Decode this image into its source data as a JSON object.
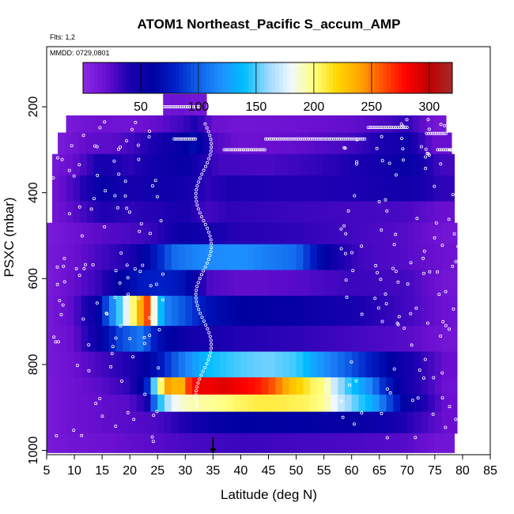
{
  "chart_data": {
    "type": "heatmap",
    "title": "ATOM1 Northeast_Pacific S_accum_AMP",
    "flights_label": "Flts: 1,2",
    "date_label": "MMDD: 0729,0801",
    "xlabel": "Latitude (deg N)",
    "ylabel": "PSXC (mbar)",
    "xlim": [
      5,
      85
    ],
    "ylim": [
      1010,
      60
    ],
    "y_inverted": true,
    "x_ticks": [
      "5",
      "10",
      "15",
      "20",
      "25",
      "30",
      "35",
      "40",
      "45",
      "50",
      "55",
      "60",
      "65",
      "70",
      "75",
      "80",
      "85"
    ],
    "y_ticks": [
      "200",
      "400",
      "600",
      "800",
      "1000"
    ],
    "colorbar": {
      "range": [
        0,
        320
      ],
      "ticks": [
        "50",
        "100",
        "150",
        "200",
        "250",
        "300"
      ],
      "colors": [
        "#8a2be2",
        "#6a0fd0",
        "#1a00b0",
        "#0000a0",
        "#0020c8",
        "#1060e8",
        "#1e90ff",
        "#00bfff",
        "#9ad8ff",
        "#f0f8ff",
        "#ffff80",
        "#ffd700",
        "#ffa500",
        "#ff5000",
        "#ff0000",
        "#c00000",
        "#a52a2a"
      ]
    },
    "rows": [
      {
        "p0": 170,
        "p1": 220,
        "lat0": 26.0,
        "lat1": 33.8,
        "cells": [
          [
            26,
            15
          ],
          [
            29,
            18
          ],
          [
            32,
            14
          ]
        ]
      },
      {
        "p0": 220,
        "p1": 260,
        "lat0": 8.5,
        "lat1": 77.0,
        "cells": [
          [
            9,
            12
          ],
          [
            14,
            18
          ],
          [
            20,
            16
          ],
          [
            25,
            22
          ],
          [
            29,
            30
          ],
          [
            32,
            40
          ],
          [
            35,
            20
          ],
          [
            40,
            15
          ],
          [
            50,
            18
          ],
          [
            60,
            22
          ],
          [
            66,
            28
          ],
          [
            70,
            35
          ],
          [
            75,
            14
          ]
        ]
      },
      {
        "p0": 260,
        "p1": 310,
        "lat0": 7.0,
        "lat1": 78.0,
        "cells": [
          [
            7,
            10
          ],
          [
            12,
            22
          ],
          [
            18,
            25
          ],
          [
            24,
            40
          ],
          [
            29,
            55
          ],
          [
            32,
            70
          ],
          [
            35,
            28
          ],
          [
            40,
            18
          ],
          [
            50,
            22
          ],
          [
            60,
            30
          ],
          [
            65,
            40
          ],
          [
            70,
            48
          ],
          [
            75,
            20
          ]
        ]
      },
      {
        "p0": 310,
        "p1": 360,
        "lat0": 6.0,
        "lat1": 78.5,
        "cells": [
          [
            6,
            12
          ],
          [
            11,
            25
          ],
          [
            15,
            45
          ],
          [
            20,
            35
          ],
          [
            25,
            48
          ],
          [
            30,
            55
          ],
          [
            33,
            40
          ],
          [
            36,
            30
          ],
          [
            45,
            28
          ],
          [
            55,
            35
          ],
          [
            65,
            45
          ],
          [
            70,
            55
          ],
          [
            76,
            30
          ]
        ]
      },
      {
        "p0": 360,
        "p1": 420,
        "lat0": 6.0,
        "lat1": 78.5,
        "cells": [
          [
            6,
            15
          ],
          [
            10,
            30
          ],
          [
            15,
            55
          ],
          [
            20,
            42
          ],
          [
            25,
            50
          ],
          [
            30,
            45
          ],
          [
            34,
            35
          ],
          [
            38,
            40
          ],
          [
            50,
            38
          ],
          [
            60,
            40
          ],
          [
            70,
            48
          ],
          [
            76,
            35
          ]
        ]
      },
      {
        "p0": 420,
        "p1": 470,
        "lat0": 6.0,
        "lat1": 78.5,
        "cells": [
          [
            6,
            15
          ],
          [
            10,
            25
          ],
          [
            15,
            40
          ],
          [
            20,
            35
          ],
          [
            25,
            38
          ],
          [
            30,
            42
          ],
          [
            34,
            30
          ],
          [
            38,
            35
          ],
          [
            50,
            32
          ],
          [
            60,
            30
          ],
          [
            70,
            28
          ],
          [
            76,
            20
          ]
        ]
      },
      {
        "p0": 470,
        "p1": 520,
        "lat0": 5.0,
        "lat1": 79.0,
        "cells": [
          [
            5,
            10
          ],
          [
            10,
            18
          ],
          [
            15,
            25
          ],
          [
            20,
            28
          ],
          [
            25,
            35
          ],
          [
            30,
            55
          ],
          [
            34,
            45
          ],
          [
            38,
            38
          ],
          [
            50,
            35
          ],
          [
            60,
            30
          ],
          [
            70,
            25
          ],
          [
            77,
            15
          ]
        ]
      },
      {
        "p0": 520,
        "p1": 580,
        "lat0": 5.0,
        "lat1": 79.0,
        "cells": [
          [
            5,
            12
          ],
          [
            10,
            20
          ],
          [
            15,
            30
          ],
          [
            20,
            40
          ],
          [
            24,
            70
          ],
          [
            28,
            105
          ],
          [
            32,
            115
          ],
          [
            35,
            118
          ],
          [
            40,
            120
          ],
          [
            45,
            112
          ],
          [
            50,
            105
          ],
          [
            55,
            60
          ],
          [
            58,
            40
          ],
          [
            62,
            30
          ],
          [
            70,
            25
          ],
          [
            77,
            18
          ]
        ]
      },
      {
        "p0": 580,
        "p1": 640,
        "lat0": 5.0,
        "lat1": 79.0,
        "cells": [
          [
            5,
            10
          ],
          [
            10,
            22
          ],
          [
            15,
            35
          ],
          [
            18,
            58
          ],
          [
            22,
            75
          ],
          [
            26,
            80
          ],
          [
            30,
            70
          ],
          [
            34,
            28
          ],
          [
            40,
            22
          ],
          [
            50,
            25
          ],
          [
            60,
            32
          ],
          [
            70,
            30
          ],
          [
            77,
            15
          ]
        ]
      },
      {
        "p0": 640,
        "p1": 710,
        "lat0": 5.0,
        "lat1": 79.0,
        "cells": [
          [
            5,
            12
          ],
          [
            10,
            25
          ],
          [
            14,
            55
          ],
          [
            17,
            120
          ],
          [
            19,
            170
          ],
          [
            21,
            210
          ],
          [
            22,
            240
          ],
          [
            23,
            270
          ],
          [
            24,
            205
          ],
          [
            25,
            150
          ],
          [
            27,
            110
          ],
          [
            30,
            95
          ],
          [
            34,
            70
          ],
          [
            40,
            60
          ],
          [
            50,
            55
          ],
          [
            60,
            42
          ],
          [
            70,
            30
          ],
          [
            77,
            18
          ]
        ]
      },
      {
        "p0": 710,
        "p1": 770,
        "lat0": 5.0,
        "lat1": 79.0,
        "cells": [
          [
            5,
            12
          ],
          [
            10,
            22
          ],
          [
            14,
            50
          ],
          [
            18,
            90
          ],
          [
            22,
            110
          ],
          [
            25,
            70
          ],
          [
            30,
            50
          ],
          [
            34,
            42
          ],
          [
            40,
            38
          ],
          [
            50,
            35
          ],
          [
            60,
            30
          ],
          [
            70,
            25
          ],
          [
            77,
            15
          ]
        ]
      },
      {
        "p0": 770,
        "p1": 830,
        "lat0": 5.0,
        "lat1": 79.0,
        "cells": [
          [
            5,
            12
          ],
          [
            10,
            20
          ],
          [
            15,
            30
          ],
          [
            20,
            40
          ],
          [
            25,
            70
          ],
          [
            30,
            115
          ],
          [
            34,
            140
          ],
          [
            40,
            150
          ],
          [
            45,
            155
          ],
          [
            50,
            148
          ],
          [
            55,
            120
          ],
          [
            60,
            95
          ],
          [
            65,
            70
          ],
          [
            70,
            45
          ],
          [
            77,
            20
          ]
        ]
      },
      {
        "p0": 830,
        "p1": 870,
        "lat0": 5.0,
        "lat1": 79.0,
        "cells": [
          [
            5,
            12
          ],
          [
            10,
            18
          ],
          [
            15,
            25
          ],
          [
            20,
            35
          ],
          [
            23,
            75
          ],
          [
            25,
            185
          ],
          [
            27,
            245
          ],
          [
            29,
            225
          ],
          [
            31,
            275
          ],
          [
            33,
            285
          ],
          [
            35,
            285
          ],
          [
            37,
            290
          ],
          [
            39,
            285
          ],
          [
            41,
            280
          ],
          [
            43,
            275
          ],
          [
            45,
            265
          ],
          [
            47,
            248
          ],
          [
            49,
            230
          ],
          [
            51,
            220
          ],
          [
            53,
            205
          ],
          [
            55,
            200
          ],
          [
            57,
            170
          ],
          [
            59,
            150
          ],
          [
            61,
            135
          ],
          [
            63,
            120
          ],
          [
            66,
            80
          ],
          [
            70,
            45
          ],
          [
            74,
            30
          ],
          [
            77,
            18
          ]
        ]
      },
      {
        "p0": 870,
        "p1": 910,
        "lat0": 5.0,
        "lat1": 79.0,
        "cells": [
          [
            5,
            12
          ],
          [
            10,
            18
          ],
          [
            15,
            22
          ],
          [
            20,
            25
          ],
          [
            23,
            40
          ],
          [
            25,
            130
          ],
          [
            26,
            155
          ],
          [
            28,
            180
          ],
          [
            30,
            190
          ],
          [
            33,
            195
          ],
          [
            36,
            198
          ],
          [
            40,
            205
          ],
          [
            44,
            210
          ],
          [
            48,
            208
          ],
          [
            52,
            205
          ],
          [
            55,
            198
          ],
          [
            58,
            170
          ],
          [
            61,
            150
          ],
          [
            64,
            130
          ],
          [
            67,
            90
          ],
          [
            70,
            55
          ],
          [
            74,
            35
          ],
          [
            77,
            20
          ]
        ]
      },
      {
        "p0": 910,
        "p1": 960,
        "lat0": 5.0,
        "lat1": 79.0,
        "cells": [
          [
            5,
            12
          ],
          [
            10,
            18
          ],
          [
            15,
            22
          ],
          [
            20,
            25
          ],
          [
            25,
            28
          ],
          [
            30,
            40
          ],
          [
            35,
            55
          ],
          [
            40,
            60
          ],
          [
            50,
            58
          ],
          [
            60,
            55
          ],
          [
            65,
            50
          ],
          [
            70,
            38
          ],
          [
            77,
            20
          ]
        ]
      },
      {
        "p0": 960,
        "p1": 1005,
        "lat0": 5.0,
        "lat1": 78.5,
        "cells": [
          [
            5,
            12
          ],
          [
            10,
            16
          ],
          [
            15,
            18
          ],
          [
            20,
            22
          ],
          [
            25,
            25
          ],
          [
            30,
            28
          ],
          [
            35,
            30
          ],
          [
            40,
            32
          ],
          [
            50,
            30
          ],
          [
            60,
            28
          ],
          [
            70,
            25
          ],
          [
            76,
            15
          ]
        ]
      }
    ],
    "marker_latitude": 35
  }
}
